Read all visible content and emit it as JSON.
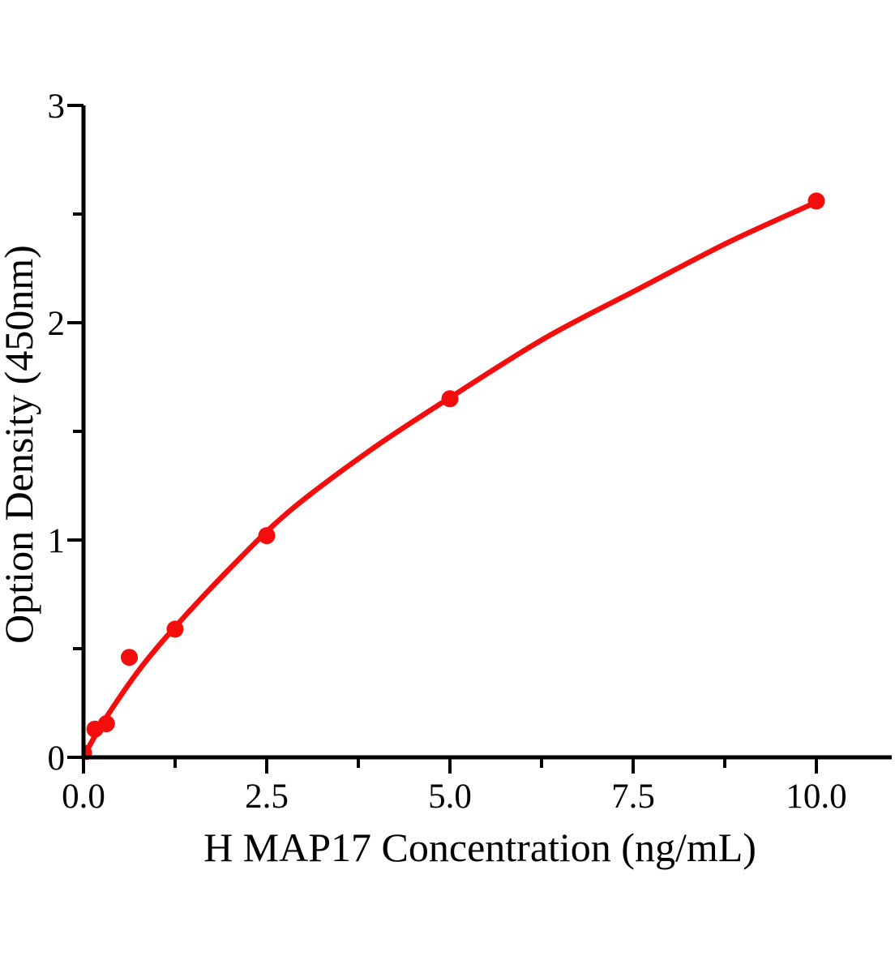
{
  "chart_data": {
    "type": "scatter",
    "title": "",
    "xlabel": "H MAP17 Concentration (ng/mL)",
    "ylabel": "Option Density (450nm)",
    "grid": false,
    "legend": false,
    "background_color": "#ffffff",
    "axis_color": "#000000",
    "accent_color": "#f40d0d",
    "x_axis": {
      "range": [
        0,
        11.0
      ],
      "major_ticks": [
        0,
        2.5,
        5.0,
        7.5,
        10.0
      ],
      "tick_labels": [
        "0.0",
        "2.5",
        "5.0",
        "7.5",
        "10.0"
      ],
      "minor_ticks": [
        1.25,
        3.75,
        6.25,
        8.75
      ]
    },
    "y_axis": {
      "range": [
        0,
        3
      ],
      "major_ticks": [
        0,
        1,
        2,
        3
      ],
      "tick_labels": [
        "0",
        "1",
        "2",
        "3"
      ],
      "minor_ticks": [
        0.5,
        1.5,
        2.5
      ]
    },
    "series": [
      {
        "name": "standard_points",
        "type": "scatter",
        "color": "#f40d0d",
        "x": [
          0,
          0.156,
          0.313,
          0.625,
          1.25,
          2.5,
          5.0,
          10.0
        ],
        "y": [
          0.02,
          0.13,
          0.155,
          0.46,
          0.59,
          1.02,
          1.65,
          2.56
        ]
      },
      {
        "name": "fitted_curve",
        "type": "line",
        "color": "#f40d0d",
        "points": [
          [
            0,
            0
          ],
          [
            0.16,
            0.1
          ],
          [
            0.42,
            0.24
          ],
          [
            0.8,
            0.42
          ],
          [
            1.25,
            0.6
          ],
          [
            2.0,
            0.87
          ],
          [
            2.8,
            1.13
          ],
          [
            3.9,
            1.41
          ],
          [
            5.0,
            1.655
          ],
          [
            6.3,
            1.93
          ],
          [
            7.6,
            2.16
          ],
          [
            8.8,
            2.37
          ],
          [
            10.0,
            2.555
          ]
        ]
      }
    ]
  }
}
